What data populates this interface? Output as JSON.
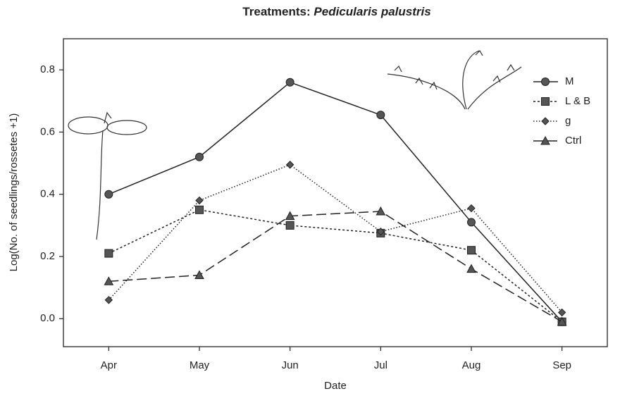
{
  "chart_data": {
    "type": "line",
    "title": [
      "Treatments:",
      "Pedicularis palustris"
    ],
    "x_label": "Date",
    "y_label": "Log(No. of seedlings/rossetes +1)",
    "categories": [
      "Apr",
      "May",
      "Jun",
      "Jul",
      "Aug",
      "Sep"
    ],
    "ylim": [
      -0.09,
      0.9
    ],
    "yticks": [
      {
        "value": 0,
        "label": "0.0"
      },
      0.2,
      0.4,
      0.6,
      0.8
    ],
    "legend": "top-right",
    "series": [
      {
        "name": "M",
        "color": "#222222",
        "marker": "circle",
        "linestyle": "solid",
        "values": [
          0.4,
          0.52,
          0.76,
          0.655,
          0.31,
          -0.01
        ]
      },
      {
        "name": "L & B",
        "color": "#222222",
        "marker": "square",
        "linestyle": "dotted",
        "values": [
          0.21,
          0.35,
          0.3,
          0.275,
          0.22,
          -0.01
        ]
      },
      {
        "name": "g",
        "color": "#222222",
        "marker": "diamond",
        "linestyle": "fine-dotted",
        "values": [
          0.06,
          0.38,
          0.495,
          0.28,
          0.355,
          0.02
        ]
      },
      {
        "name": "Ctrl",
        "color": "#222222",
        "marker": "triangle",
        "linestyle": "dashed",
        "values": [
          0.12,
          0.14,
          0.33,
          0.345,
          0.16,
          -0.01
        ]
      }
    ]
  }
}
